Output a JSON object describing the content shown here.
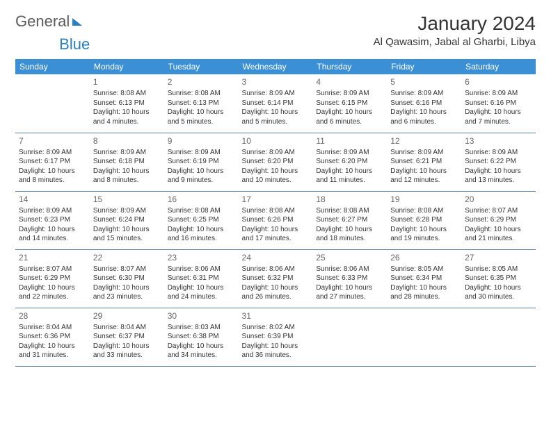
{
  "logo": {
    "part1": "General",
    "part2": "Blue"
  },
  "title": "January 2024",
  "location": "Al Qawasim, Jabal al Gharbi, Libya",
  "colors": {
    "header_bg": "#3b8fd4",
    "header_fg": "#ffffff",
    "border": "#5a7a9a",
    "logo_blue": "#2a7fbf"
  },
  "weekdays": [
    "Sunday",
    "Monday",
    "Tuesday",
    "Wednesday",
    "Thursday",
    "Friday",
    "Saturday"
  ],
  "weeks": [
    [
      null,
      {
        "n": "1",
        "sr": "Sunrise: 8:08 AM",
        "ss": "Sunset: 6:13 PM",
        "dl": "Daylight: 10 hours and 4 minutes."
      },
      {
        "n": "2",
        "sr": "Sunrise: 8:08 AM",
        "ss": "Sunset: 6:13 PM",
        "dl": "Daylight: 10 hours and 5 minutes."
      },
      {
        "n": "3",
        "sr": "Sunrise: 8:09 AM",
        "ss": "Sunset: 6:14 PM",
        "dl": "Daylight: 10 hours and 5 minutes."
      },
      {
        "n": "4",
        "sr": "Sunrise: 8:09 AM",
        "ss": "Sunset: 6:15 PM",
        "dl": "Daylight: 10 hours and 6 minutes."
      },
      {
        "n": "5",
        "sr": "Sunrise: 8:09 AM",
        "ss": "Sunset: 6:16 PM",
        "dl": "Daylight: 10 hours and 6 minutes."
      },
      {
        "n": "6",
        "sr": "Sunrise: 8:09 AM",
        "ss": "Sunset: 6:16 PM",
        "dl": "Daylight: 10 hours and 7 minutes."
      }
    ],
    [
      {
        "n": "7",
        "sr": "Sunrise: 8:09 AM",
        "ss": "Sunset: 6:17 PM",
        "dl": "Daylight: 10 hours and 8 minutes."
      },
      {
        "n": "8",
        "sr": "Sunrise: 8:09 AM",
        "ss": "Sunset: 6:18 PM",
        "dl": "Daylight: 10 hours and 8 minutes."
      },
      {
        "n": "9",
        "sr": "Sunrise: 8:09 AM",
        "ss": "Sunset: 6:19 PM",
        "dl": "Daylight: 10 hours and 9 minutes."
      },
      {
        "n": "10",
        "sr": "Sunrise: 8:09 AM",
        "ss": "Sunset: 6:20 PM",
        "dl": "Daylight: 10 hours and 10 minutes."
      },
      {
        "n": "11",
        "sr": "Sunrise: 8:09 AM",
        "ss": "Sunset: 6:20 PM",
        "dl": "Daylight: 10 hours and 11 minutes."
      },
      {
        "n": "12",
        "sr": "Sunrise: 8:09 AM",
        "ss": "Sunset: 6:21 PM",
        "dl": "Daylight: 10 hours and 12 minutes."
      },
      {
        "n": "13",
        "sr": "Sunrise: 8:09 AM",
        "ss": "Sunset: 6:22 PM",
        "dl": "Daylight: 10 hours and 13 minutes."
      }
    ],
    [
      {
        "n": "14",
        "sr": "Sunrise: 8:09 AM",
        "ss": "Sunset: 6:23 PM",
        "dl": "Daylight: 10 hours and 14 minutes."
      },
      {
        "n": "15",
        "sr": "Sunrise: 8:09 AM",
        "ss": "Sunset: 6:24 PM",
        "dl": "Daylight: 10 hours and 15 minutes."
      },
      {
        "n": "16",
        "sr": "Sunrise: 8:08 AM",
        "ss": "Sunset: 6:25 PM",
        "dl": "Daylight: 10 hours and 16 minutes."
      },
      {
        "n": "17",
        "sr": "Sunrise: 8:08 AM",
        "ss": "Sunset: 6:26 PM",
        "dl": "Daylight: 10 hours and 17 minutes."
      },
      {
        "n": "18",
        "sr": "Sunrise: 8:08 AM",
        "ss": "Sunset: 6:27 PM",
        "dl": "Daylight: 10 hours and 18 minutes."
      },
      {
        "n": "19",
        "sr": "Sunrise: 8:08 AM",
        "ss": "Sunset: 6:28 PM",
        "dl": "Daylight: 10 hours and 19 minutes."
      },
      {
        "n": "20",
        "sr": "Sunrise: 8:07 AM",
        "ss": "Sunset: 6:29 PM",
        "dl": "Daylight: 10 hours and 21 minutes."
      }
    ],
    [
      {
        "n": "21",
        "sr": "Sunrise: 8:07 AM",
        "ss": "Sunset: 6:29 PM",
        "dl": "Daylight: 10 hours and 22 minutes."
      },
      {
        "n": "22",
        "sr": "Sunrise: 8:07 AM",
        "ss": "Sunset: 6:30 PM",
        "dl": "Daylight: 10 hours and 23 minutes."
      },
      {
        "n": "23",
        "sr": "Sunrise: 8:06 AM",
        "ss": "Sunset: 6:31 PM",
        "dl": "Daylight: 10 hours and 24 minutes."
      },
      {
        "n": "24",
        "sr": "Sunrise: 8:06 AM",
        "ss": "Sunset: 6:32 PM",
        "dl": "Daylight: 10 hours and 26 minutes."
      },
      {
        "n": "25",
        "sr": "Sunrise: 8:06 AM",
        "ss": "Sunset: 6:33 PM",
        "dl": "Daylight: 10 hours and 27 minutes."
      },
      {
        "n": "26",
        "sr": "Sunrise: 8:05 AM",
        "ss": "Sunset: 6:34 PM",
        "dl": "Daylight: 10 hours and 28 minutes."
      },
      {
        "n": "27",
        "sr": "Sunrise: 8:05 AM",
        "ss": "Sunset: 6:35 PM",
        "dl": "Daylight: 10 hours and 30 minutes."
      }
    ],
    [
      {
        "n": "28",
        "sr": "Sunrise: 8:04 AM",
        "ss": "Sunset: 6:36 PM",
        "dl": "Daylight: 10 hours and 31 minutes."
      },
      {
        "n": "29",
        "sr": "Sunrise: 8:04 AM",
        "ss": "Sunset: 6:37 PM",
        "dl": "Daylight: 10 hours and 33 minutes."
      },
      {
        "n": "30",
        "sr": "Sunrise: 8:03 AM",
        "ss": "Sunset: 6:38 PM",
        "dl": "Daylight: 10 hours and 34 minutes."
      },
      {
        "n": "31",
        "sr": "Sunrise: 8:02 AM",
        "ss": "Sunset: 6:39 PM",
        "dl": "Daylight: 10 hours and 36 minutes."
      },
      null,
      null,
      null
    ]
  ]
}
